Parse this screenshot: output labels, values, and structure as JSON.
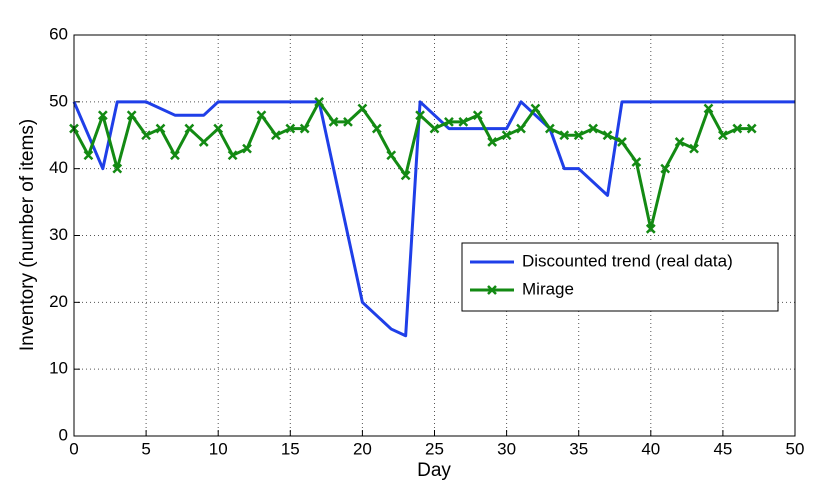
{
  "chart_data": {
    "type": "line",
    "xlabel": "Day",
    "ylabel": "Inventory (number of items)",
    "xlim": [
      0,
      50
    ],
    "xticks": [
      0,
      5,
      10,
      15,
      20,
      25,
      30,
      35,
      40,
      45,
      50
    ],
    "ylim": [
      0,
      60
    ],
    "yticks": [
      0,
      10,
      20,
      30,
      40,
      50,
      60
    ],
    "grid": true,
    "legend": "center right",
    "series": [
      {
        "name": "Discounted trend (real data)",
        "color": "#1f3fe8",
        "marker": "none",
        "x": [
          0,
          2,
          3,
          5,
          7,
          9,
          10,
          17,
          20,
          22,
          23,
          24,
          26,
          30,
          31,
          33,
          34,
          35,
          37,
          38,
          50
        ],
        "values": [
          50,
          40,
          50,
          50,
          48,
          48,
          50,
          50,
          20,
          16,
          15,
          50,
          46,
          46,
          50,
          46,
          40,
          40,
          36,
          50,
          50
        ]
      },
      {
        "name": "Mirage",
        "color": "#138a13",
        "marker": "x",
        "x": [
          0,
          1,
          2,
          3,
          4,
          5,
          6,
          7,
          8,
          9,
          10,
          11,
          12,
          13,
          14,
          15,
          16,
          17,
          18,
          19,
          20,
          21,
          22,
          23,
          24,
          25,
          26,
          27,
          28,
          29,
          30,
          31,
          32,
          33,
          34,
          35,
          36,
          37,
          38,
          39,
          40,
          41,
          42,
          43,
          44,
          45,
          46,
          47
        ],
        "values": [
          46,
          42,
          48,
          40,
          48,
          45,
          46,
          42,
          46,
          44,
          46,
          42,
          43,
          48,
          45,
          46,
          46,
          50,
          47,
          47,
          49,
          46,
          42,
          39,
          48,
          46,
          47,
          47,
          48,
          44,
          45,
          46,
          49,
          46,
          45,
          45,
          46,
          45,
          44,
          41,
          31,
          40,
          44,
          43,
          49,
          45,
          46,
          46
        ]
      }
    ]
  }
}
